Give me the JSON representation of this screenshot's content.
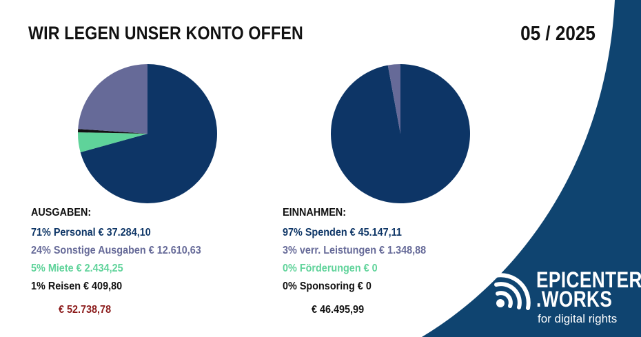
{
  "title": "WIR LEGEN UNSER KONTO OFFEN",
  "date": "05 / 2025",
  "colors": {
    "navy": "#0d3566",
    "lavender": "#666a98",
    "green": "#5fd39a",
    "black": "#111111",
    "total_red": "#8b1a1a",
    "brand_blue": "#0f4470"
  },
  "chart_data": [
    {
      "type": "pie",
      "title": "",
      "heading": "AUSGABEN:",
      "slices": [
        {
          "label": "71% Personal € 37.284,10",
          "value": 37284.1,
          "color": "#0d3566"
        },
        {
          "label": "5%  Miete € 2.434,25",
          "value": 2434.25,
          "color": "#5fd39a"
        },
        {
          "label": "1%  Reisen € 409,80",
          "value": 409.8,
          "color": "#111111"
        },
        {
          "label": "24% Sonstige Ausgaben € 12.610,63",
          "value": 12610.63,
          "color": "#666a98"
        }
      ],
      "legend_order": [
        0,
        3,
        1,
        2
      ],
      "total": "€ 52.738,78"
    },
    {
      "type": "pie",
      "title": "",
      "heading": "EINNAHMEN:",
      "slices": [
        {
          "label": "97% Spenden € 45.147,11",
          "value": 45147.11,
          "color": "#0d3566"
        },
        {
          "label": "3% verr. Leistungen € 1.348,88",
          "value": 1348.88,
          "color": "#666a98"
        },
        {
          "label": "0% Förderungen € 0",
          "value": 0,
          "color": "#5fd39a"
        },
        {
          "label": "0% Sponsoring € 0",
          "value": 0,
          "color": "#111111"
        }
      ],
      "legend_order": [
        0,
        1,
        2,
        3
      ],
      "total": "€ 46.495,99"
    }
  ],
  "logo": {
    "line1": "EPICENTER",
    "line2": ".WORKS",
    "tagline": "for digital rights",
    "icon": "broadcast-signal-icon"
  }
}
